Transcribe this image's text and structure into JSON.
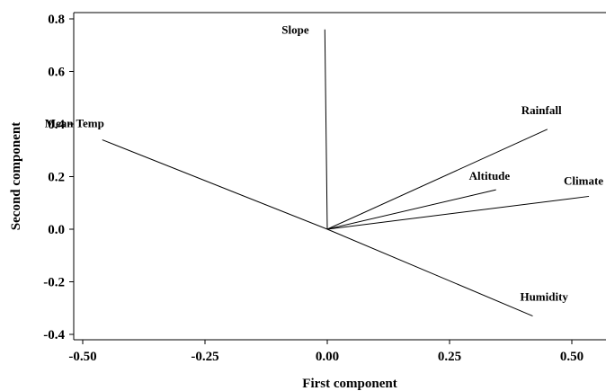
{
  "chart_data": {
    "type": "line",
    "title": "",
    "xlabel": "First component",
    "ylabel": "Second component",
    "xlim": [
      -0.52,
      0.58
    ],
    "ylim": [
      -0.42,
      0.82
    ],
    "x_ticks": [
      -0.5,
      -0.25,
      0.0,
      0.25,
      0.5
    ],
    "x_tick_labels": [
      "-0.50",
      "-0.25",
      "0.00",
      "0.25",
      "0.50"
    ],
    "y_ticks": [
      -0.4,
      -0.2,
      0.0,
      0.2,
      0.4,
      0.6,
      0.8
    ],
    "y_tick_labels": [
      "-0.4",
      "-0.2",
      "0.0",
      "0.2",
      "0.4",
      "0.6",
      "0.8"
    ],
    "grid": false,
    "series": [
      {
        "name": "Slope",
        "x": [
          0,
          -0.005
        ],
        "y": [
          0,
          0.76
        ]
      },
      {
        "name": "Mean Temp",
        "x": [
          0,
          -0.46
        ],
        "y": [
          0,
          0.34
        ]
      },
      {
        "name": "Rainfall",
        "x": [
          0,
          0.45
        ],
        "y": [
          0,
          0.38
        ]
      },
      {
        "name": "Altitude",
        "x": [
          0,
          0.345
        ],
        "y": [
          0,
          0.15
        ]
      },
      {
        "name": "Climate",
        "x": [
          0,
          0.535
        ],
        "y": [
          0,
          0.125
        ]
      },
      {
        "name": "Humidity",
        "x": [
          0,
          0.42
        ],
        "y": [
          0,
          -0.33
        ]
      }
    ]
  }
}
